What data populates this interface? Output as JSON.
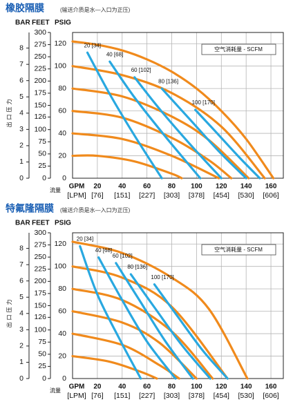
{
  "chart_data": [
    {
      "type": "line",
      "title": "橡胶隔膜",
      "subtitle": "(输送介质是水—入口为正压)",
      "y3label": "BAR",
      "y2label": "FEET",
      "ylabel": "PSIG",
      "ytitle": "出口压力",
      "xlabel": "GPM",
      "x2label": "[LPM]",
      "xtitle": "流量",
      "legend_title": "空气消耗量 - SCFM",
      "xlim": [
        0,
        170
      ],
      "xticks": [
        20,
        40,
        60,
        80,
        100,
        120,
        140,
        160
      ],
      "x2ticks": [
        {
          "value": 20,
          "label": "[76]"
        },
        {
          "value": 40,
          "label": "[151]"
        },
        {
          "value": 60,
          "label": "[227]"
        },
        {
          "value": 80,
          "label": "[303]"
        },
        {
          "value": 100,
          "label": "[378]"
        },
        {
          "value": 120,
          "label": "[454]"
        },
        {
          "value": 140,
          "label": "[530]"
        },
        {
          "value": 160,
          "label": "[606]"
        }
      ],
      "ylim": [
        0,
        130
      ],
      "yticks": [
        0,
        20,
        40,
        60,
        80,
        100,
        120
      ],
      "y2lim": [
        0,
        300
      ],
      "y2ticks": [
        0,
        25,
        50,
        75,
        100,
        126,
        150,
        175,
        200,
        225,
        250,
        275,
        300
      ],
      "y3lim": [
        0,
        8.96
      ],
      "y3ticks": [
        0,
        1,
        2,
        3,
        4,
        5,
        6,
        7,
        8
      ],
      "grid": true,
      "series": [
        {
          "color": "#f08a1c",
          "x": [
            0,
            20,
            40,
            60,
            80,
            100,
            120,
            140,
            162
          ],
          "values": [
            122,
            119,
            114,
            106,
            95,
            80,
            60,
            35,
            0
          ]
        },
        {
          "color": "#f08a1c",
          "x": [
            0,
            40,
            80,
            120,
            155
          ],
          "values": [
            100,
            92,
            76,
            46,
            0
          ]
        },
        {
          "color": "#f08a1c",
          "x": [
            0,
            40,
            80,
            110,
            142
          ],
          "values": [
            80,
            73,
            55,
            34,
            0
          ]
        },
        {
          "color": "#f08a1c",
          "x": [
            0,
            40,
            80,
            110,
            128
          ],
          "values": [
            60,
            54,
            36,
            16,
            0
          ]
        },
        {
          "color": "#f08a1c",
          "x": [
            0,
            40,
            80,
            118
          ],
          "values": [
            40,
            35,
            20,
            0
          ]
        },
        {
          "color": "#f08a1c",
          "x": [
            0,
            20,
            50,
            80,
            88
          ],
          "values": [
            20,
            20,
            15,
            4,
            0
          ]
        },
        {
          "name": "20 [34]",
          "color": "#29a8e0",
          "x": [
            12,
            30,
            50,
            72
          ],
          "values": [
            112,
            75,
            38,
            0
          ]
        },
        {
          "name": "40 [68]",
          "color": "#29a8e0",
          "x": [
            30,
            50,
            75,
            103
          ],
          "values": [
            104,
            72,
            37,
            0
          ]
        },
        {
          "name": "60 [102]",
          "color": "#29a8e0",
          "x": [
            50,
            70,
            95,
            120
          ],
          "values": [
            90,
            62,
            30,
            0
          ]
        },
        {
          "name": "80 [136]",
          "color": "#29a8e0",
          "x": [
            72,
            95,
            118,
            140
          ],
          "values": [
            80,
            52,
            24,
            0
          ]
        },
        {
          "name": "100 [170]",
          "color": "#29a8e0",
          "x": [
            99,
            115,
            135,
            151
          ],
          "values": [
            61,
            42,
            18,
            0
          ]
        }
      ]
    },
    {
      "type": "line",
      "title": "特氟隆隔膜",
      "subtitle": "(输送介质是水—入口为正压)",
      "y3label": "BAR",
      "y2label": "FEET",
      "ylabel": "PSIG",
      "ytitle": "出口压力",
      "xlabel": "GPM",
      "x2label": "[LPM]",
      "xtitle": "流量",
      "legend_title": "空气消耗量 - SCFM",
      "xlim": [
        0,
        170
      ],
      "xticks": [
        20,
        40,
        60,
        80,
        100,
        120,
        140,
        160
      ],
      "x2ticks": [
        {
          "value": 20,
          "label": "[76]"
        },
        {
          "value": 40,
          "label": "[151]"
        },
        {
          "value": 60,
          "label": "[227]"
        },
        {
          "value": 80,
          "label": "[303]"
        },
        {
          "value": 100,
          "label": "[378]"
        },
        {
          "value": 120,
          "label": "[454]"
        },
        {
          "value": 140,
          "label": "[530]"
        },
        {
          "value": 160,
          "label": "[606]"
        }
      ],
      "ylim": [
        0,
        130
      ],
      "yticks": [
        0,
        20,
        40,
        60,
        80,
        100,
        120
      ],
      "y2lim": [
        0,
        300
      ],
      "y2ticks": [
        0,
        25,
        50,
        75,
        100,
        126,
        150,
        175,
        200,
        225,
        250,
        275,
        300
      ],
      "y3lim": [
        0,
        8.96
      ],
      "y3ticks": [
        0,
        1,
        2,
        3,
        4,
        5,
        6,
        7,
        8
      ],
      "grid": true,
      "series": [
        {
          "color": "#f08a1c",
          "x": [
            0,
            40,
            80,
            110,
            141
          ],
          "values": [
            122,
            112,
            90,
            62,
            0
          ]
        },
        {
          "color": "#f08a1c",
          "x": [
            0,
            40,
            80,
            125
          ],
          "values": [
            100,
            90,
            64,
            0
          ]
        },
        {
          "color": "#f08a1c",
          "x": [
            0,
            40,
            80,
            113
          ],
          "values": [
            80,
            70,
            42,
            0
          ]
        },
        {
          "color": "#f08a1c",
          "x": [
            0,
            40,
            70,
            100
          ],
          "values": [
            60,
            50,
            32,
            0
          ]
        },
        {
          "color": "#f08a1c",
          "x": [
            0,
            40,
            70,
            86
          ],
          "values": [
            40,
            30,
            12,
            0
          ]
        },
        {
          "color": "#f08a1c",
          "x": [
            0,
            30,
            55,
            68
          ],
          "values": [
            20,
            15,
            6,
            0
          ]
        },
        {
          "name": "20 [34]",
          "color": "#29a8e0",
          "x": [
            6,
            20,
            38,
            55
          ],
          "values": [
            118,
            75,
            35,
            0
          ]
        },
        {
          "name": "40 [68]",
          "color": "#29a8e0",
          "x": [
            21,
            40,
            60,
            83
          ],
          "values": [
            108,
            70,
            33,
            0
          ]
        },
        {
          "name": "60 [102]",
          "color": "#29a8e0",
          "x": [
            35,
            55,
            75,
            97
          ],
          "values": [
            103,
            68,
            33,
            0
          ]
        },
        {
          "name": "80 [136]",
          "color": "#29a8e0",
          "x": [
            47,
            67,
            88,
            111
          ],
          "values": [
            93,
            62,
            30,
            0
          ]
        },
        {
          "name": "100 [170]",
          "color": "#29a8e0",
          "x": [
            66,
            85,
            105,
            125
          ],
          "values": [
            84,
            55,
            25,
            0
          ]
        }
      ]
    }
  ]
}
